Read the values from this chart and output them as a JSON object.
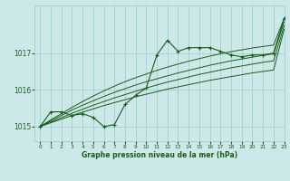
{
  "xlabel": "Graphe pression niveau de la mer (hPa)",
  "background_color": "#cce8e8",
  "grid_color": "#99cccc",
  "line_color": "#1a5c1a",
  "ylim": [
    1014.6,
    1018.3
  ],
  "xlim": [
    -0.5,
    23
  ],
  "yticks": [
    1015,
    1016,
    1017
  ],
  "xticks": [
    0,
    1,
    2,
    3,
    4,
    5,
    6,
    7,
    8,
    9,
    10,
    11,
    12,
    13,
    14,
    15,
    16,
    17,
    18,
    19,
    20,
    21,
    22,
    23
  ],
  "line_main": [
    1015.0,
    1015.4,
    1015.4,
    1015.3,
    1015.35,
    1015.25,
    1015.0,
    1015.05,
    1015.6,
    1015.85,
    1016.05,
    1016.95,
    1017.35,
    1017.05,
    1017.15,
    1017.15,
    1017.15,
    1017.05,
    1016.95,
    1016.9,
    1016.95,
    1016.95,
    1017.0,
    1017.95
  ],
  "line_smooth1": [
    1015.0,
    1015.18,
    1015.35,
    1015.52,
    1015.68,
    1015.83,
    1015.97,
    1016.1,
    1016.22,
    1016.33,
    1016.43,
    1016.53,
    1016.62,
    1016.7,
    1016.78,
    1016.85,
    1016.92,
    1016.98,
    1017.04,
    1017.09,
    1017.14,
    1017.18,
    1017.22,
    1017.95
  ],
  "line_smooth2": [
    1015.0,
    1015.15,
    1015.3,
    1015.45,
    1015.58,
    1015.7,
    1015.82,
    1015.93,
    1016.03,
    1016.13,
    1016.22,
    1016.3,
    1016.38,
    1016.46,
    1016.53,
    1016.6,
    1016.67,
    1016.73,
    1016.79,
    1016.84,
    1016.89,
    1016.94,
    1016.98,
    1017.85
  ],
  "line_smooth3": [
    1015.0,
    1015.12,
    1015.24,
    1015.36,
    1015.47,
    1015.58,
    1015.68,
    1015.78,
    1015.87,
    1015.96,
    1016.05,
    1016.13,
    1016.21,
    1016.28,
    1016.35,
    1016.42,
    1016.48,
    1016.54,
    1016.6,
    1016.65,
    1016.7,
    1016.75,
    1016.79,
    1017.75
  ],
  "line_smooth4": [
    1015.0,
    1015.1,
    1015.2,
    1015.3,
    1015.39,
    1015.48,
    1015.57,
    1015.65,
    1015.73,
    1015.81,
    1015.88,
    1015.95,
    1016.02,
    1016.08,
    1016.14,
    1016.2,
    1016.26,
    1016.31,
    1016.36,
    1016.41,
    1016.46,
    1016.5,
    1016.54,
    1017.65
  ]
}
